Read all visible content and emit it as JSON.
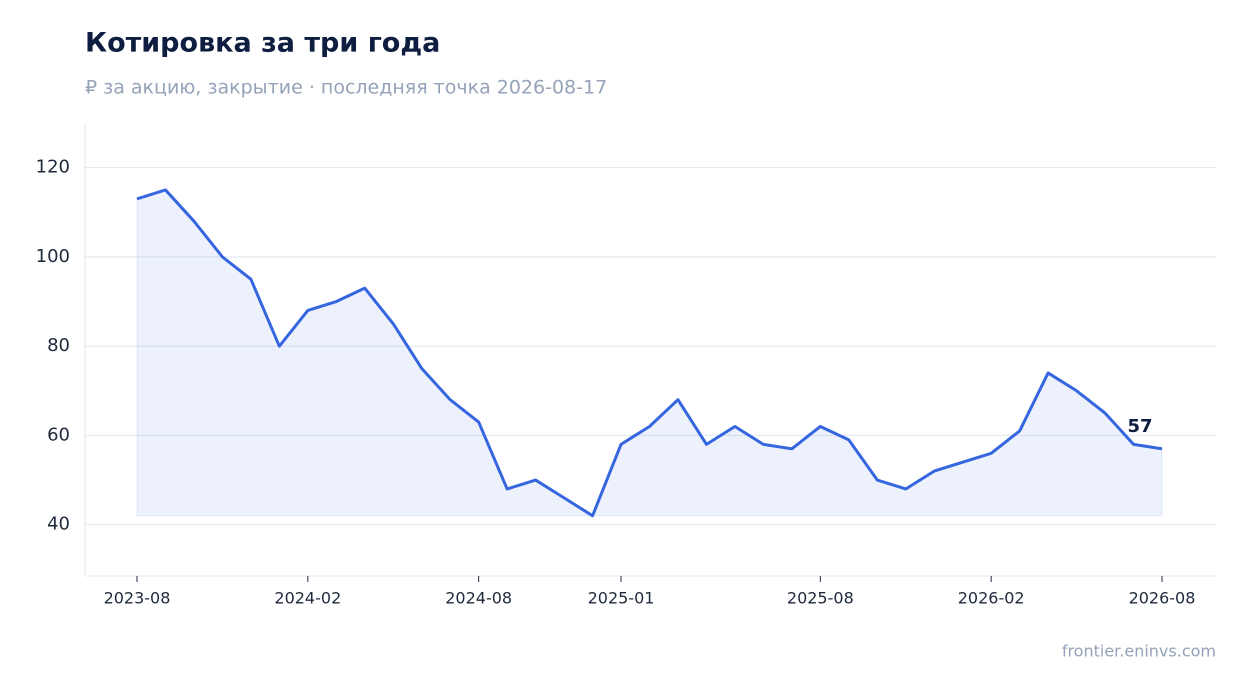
{
  "chart_data": {
    "type": "line",
    "title": "Котировка за три года",
    "subtitle": "₽ за акцию, закрытие · последняя точка 2026-08-17",
    "source": "frontier.eninvs.com",
    "x": [
      "2023-08",
      "2023-09",
      "2023-10",
      "2023-11",
      "2023-12",
      "2024-01",
      "2024-02",
      "2024-03",
      "2024-04",
      "2024-05",
      "2024-06",
      "2024-07",
      "2024-08",
      "2024-09",
      "2024-10",
      "2024-11",
      "2024-12",
      "2025-01",
      "2025-02",
      "2025-03",
      "2025-04",
      "2025-05",
      "2025-06",
      "2025-07",
      "2025-08",
      "2025-09",
      "2025-10",
      "2025-11",
      "2025-12",
      "2026-01",
      "2026-02",
      "2026-03",
      "2026-04",
      "2026-05",
      "2026-06",
      "2026-07",
      "2026-08"
    ],
    "values": [
      113,
      115,
      108,
      100,
      95,
      80,
      88,
      90,
      93,
      85,
      75,
      68,
      63,
      48,
      50,
      46,
      42,
      58,
      62,
      68,
      58,
      62,
      58,
      57,
      62,
      59,
      50,
      48,
      52,
      54,
      56,
      61,
      74,
      70,
      65,
      58,
      57
    ],
    "color": "#3566e0",
    "xticks": [
      "2023-08",
      "2024-02",
      "2024-08",
      "2025-01",
      "2025-08",
      "2026-02",
      "2026-08"
    ],
    "ylim": [
      28.5,
      130
    ],
    "yticks": [
      40,
      60,
      80,
      100,
      120
    ],
    "grid": true
  }
}
